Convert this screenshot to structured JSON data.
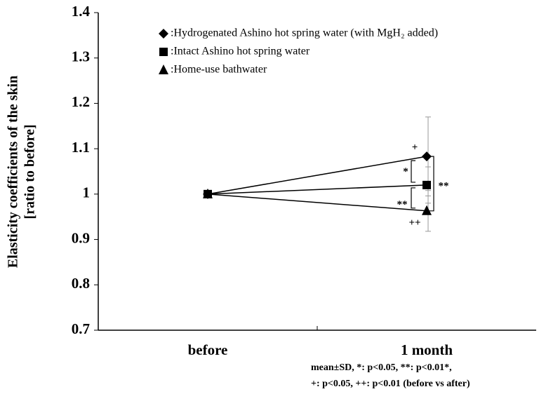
{
  "chart_data": {
    "type": "line",
    "y_label_lines": [
      "Elasticity coefficients of the skin",
      "[ratio to before]"
    ],
    "categories": [
      "before",
      "1 month"
    ],
    "series": [
      {
        "name": ":Hydrogenated Ashino hot spring water (with MgH₂ added)",
        "color": "#000000",
        "marker": "diamond",
        "values": [
          1.0,
          1.083
        ],
        "errors": [
          null,
          0.087
        ]
      },
      {
        "name": ":Intact Ashino hot spring water",
        "color": "#000000",
        "marker": "square",
        "values": [
          1.0,
          1.02
        ],
        "errors": [
          null,
          0.04
        ]
      },
      {
        "name": ":Home-use bathwater",
        "color": "#000000",
        "marker": "triangle",
        "values": [
          1.0,
          0.963
        ],
        "errors": [
          null,
          0.045
        ]
      }
    ],
    "ylim": [
      0.7,
      1.4
    ],
    "yticks": [
      0.7,
      0.8,
      0.9,
      1,
      1.1,
      1.2,
      1.3,
      1.4
    ],
    "annotations": [
      "+",
      "*",
      "**",
      "**",
      "++"
    ],
    "footnote": [
      "mean±SD, *: p<0.05, **: p<0.01*,",
      "+: p<0.05, ++: p<0.01 (before vs after)"
    ],
    "legend": "top-right"
  }
}
